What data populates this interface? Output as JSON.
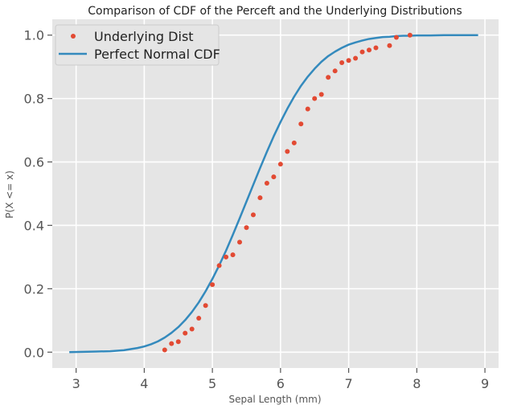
{
  "chart_data": {
    "type": "line",
    "title": "Comparison of CDF of the Perceft and the Underlying Distributions",
    "xlabel": "Sepal Length (mm)",
    "ylabel": "P(X <= x)",
    "xlim": [
      2.65,
      9.2
    ],
    "ylim": [
      -0.05,
      1.05
    ],
    "xticks": [
      3,
      4,
      5,
      6,
      7,
      8,
      9
    ],
    "yticks": [
      0.0,
      0.2,
      0.4,
      0.6,
      0.8,
      1.0
    ],
    "xtick_labels": [
      "3",
      "4",
      "5",
      "6",
      "7",
      "8",
      "9"
    ],
    "ytick_labels": [
      "0.0",
      "0.2",
      "0.4",
      "0.6",
      "0.8",
      "1.0"
    ],
    "grid": true,
    "legend_position": "top-left",
    "background_color": "#E5E5E5",
    "series": [
      {
        "name": "Underlying Dist",
        "kind": "scatter",
        "color": "#E24A33",
        "x": [
          4.3,
          4.4,
          4.5,
          4.6,
          4.7,
          4.8,
          4.9,
          5.0,
          5.1,
          5.2,
          5.3,
          5.4,
          5.5,
          5.6,
          5.7,
          5.8,
          5.9,
          6.0,
          6.1,
          6.2,
          6.3,
          6.4,
          6.5,
          6.6,
          6.7,
          6.8,
          6.9,
          7.0,
          7.1,
          7.2,
          7.3,
          7.4,
          7.6,
          7.7,
          7.9
        ],
        "y": [
          0.007,
          0.027,
          0.033,
          0.06,
          0.073,
          0.107,
          0.147,
          0.213,
          0.273,
          0.3,
          0.307,
          0.347,
          0.393,
          0.433,
          0.487,
          0.533,
          0.553,
          0.593,
          0.633,
          0.66,
          0.72,
          0.767,
          0.8,
          0.813,
          0.867,
          0.887,
          0.913,
          0.92,
          0.927,
          0.947,
          0.953,
          0.96,
          0.967,
          0.993,
          1.0
        ]
      },
      {
        "name": "Perfect Normal CDF",
        "kind": "line",
        "color": "#348ABD",
        "x": [
          2.9,
          3.1,
          3.3,
          3.5,
          3.7,
          3.9,
          4.0,
          4.1,
          4.2,
          4.3,
          4.4,
          4.5,
          4.6,
          4.7,
          4.8,
          4.9,
          5.0,
          5.1,
          5.2,
          5.3,
          5.4,
          5.5,
          5.6,
          5.7,
          5.8,
          5.9,
          6.0,
          6.1,
          6.2,
          6.3,
          6.4,
          6.5,
          6.6,
          6.7,
          6.8,
          6.9,
          7.0,
          7.1,
          7.2,
          7.3,
          7.4,
          7.5,
          7.6,
          7.7,
          7.8,
          7.9,
          8.0,
          8.2,
          8.4,
          8.6,
          8.9
        ],
        "y": [
          0.0,
          0.001,
          0.002,
          0.003,
          0.006,
          0.013,
          0.018,
          0.025,
          0.034,
          0.046,
          0.061,
          0.079,
          0.101,
          0.127,
          0.157,
          0.192,
          0.231,
          0.274,
          0.32,
          0.37,
          0.422,
          0.475,
          0.528,
          0.581,
          0.632,
          0.681,
          0.726,
          0.768,
          0.806,
          0.84,
          0.869,
          0.894,
          0.916,
          0.934,
          0.948,
          0.96,
          0.97,
          0.977,
          0.983,
          0.988,
          0.991,
          0.994,
          0.995,
          0.997,
          0.998,
          0.998,
          0.999,
          0.999,
          1.0,
          1.0,
          1.0
        ]
      }
    ]
  }
}
